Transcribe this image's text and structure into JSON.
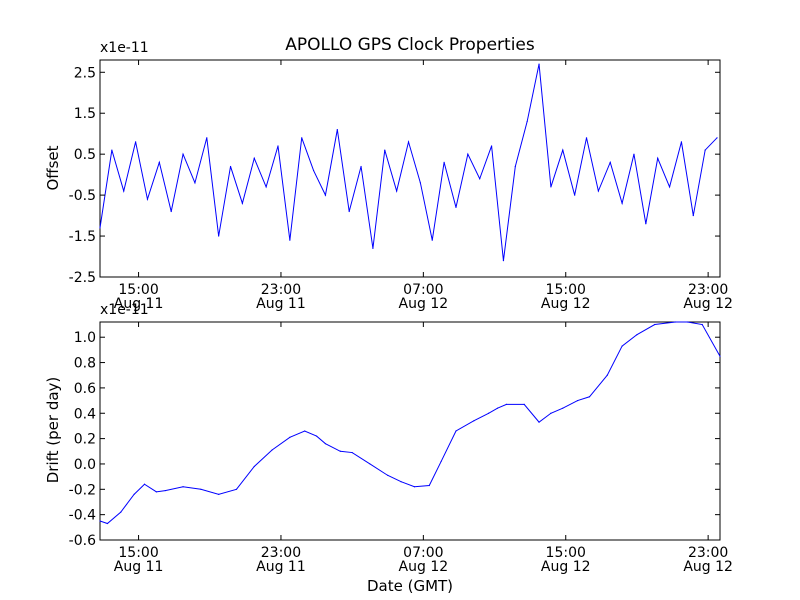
{
  "chart_data": [
    {
      "type": "line",
      "title": "APOLLO GPS Clock Properties",
      "xlabel": "",
      "ylabel": "Offset",
      "y_multiplier": "x1e-11",
      "ylim": [
        -2.5,
        2.8
      ],
      "y_ticks": [
        {
          "value": -2.5,
          "label": "-2.5"
        },
        {
          "value": -1.5,
          "label": "-1.5"
        },
        {
          "value": -0.5,
          "label": "-0.5"
        },
        {
          "value": 0.5,
          "label": "0.5"
        },
        {
          "value": 1.5,
          "label": "1.5"
        },
        {
          "value": 2.5,
          "label": "2.5"
        }
      ],
      "xlim": [
        "Aug 11 12:50",
        "Aug 12 23:40"
      ],
      "x_ticks": [
        {
          "time": "Aug 11 15:00",
          "line1": "15:00",
          "line2": "Aug 11"
        },
        {
          "time": "Aug 11 23:00",
          "line1": "23:00",
          "line2": "Aug 11"
        },
        {
          "time": "Aug 12 07:00",
          "line1": "07:00",
          "line2": "Aug 12"
        },
        {
          "time": "Aug 12 15:00",
          "line1": "15:00",
          "line2": "Aug 12"
        },
        {
          "time": "Aug 12 23:00",
          "line1": "23:00",
          "line2": "Aug 12"
        }
      ],
      "grid": false,
      "color": "#0000ff",
      "series": [
        {
          "x": [
            "Aug 11 12:50",
            "Aug 11 13:30",
            "Aug 11 14:10",
            "Aug 11 14:50",
            "Aug 11 15:30",
            "Aug 11 16:10",
            "Aug 11 16:50",
            "Aug 11 17:30",
            "Aug 11 18:10",
            "Aug 11 18:50",
            "Aug 11 19:30",
            "Aug 11 20:10",
            "Aug 11 20:50",
            "Aug 11 21:30",
            "Aug 11 22:10",
            "Aug 11 22:50",
            "Aug 11 23:30",
            "Aug 12 00:10",
            "Aug 12 00:50",
            "Aug 12 01:30",
            "Aug 12 02:10",
            "Aug 12 02:50",
            "Aug 12 03:30",
            "Aug 12 04:10",
            "Aug 12 04:50",
            "Aug 12 05:30",
            "Aug 12 06:10",
            "Aug 12 06:50",
            "Aug 12 07:30",
            "Aug 12 08:10",
            "Aug 12 08:50",
            "Aug 12 09:30",
            "Aug 12 10:10",
            "Aug 12 10:50",
            "Aug 12 11:30",
            "Aug 12 12:10",
            "Aug 12 12:50",
            "Aug 12 13:30",
            "Aug 12 14:10",
            "Aug 12 14:50",
            "Aug 12 15:30",
            "Aug 12 16:10",
            "Aug 12 16:50",
            "Aug 12 17:30",
            "Aug 12 18:10",
            "Aug 12 18:50",
            "Aug 12 19:30",
            "Aug 12 20:10",
            "Aug 12 20:50",
            "Aug 12 21:30",
            "Aug 12 22:10",
            "Aug 12 22:50",
            "Aug 12 23:30"
          ],
          "y": [
            -1.3,
            0.6,
            -0.4,
            0.8,
            -0.6,
            0.3,
            -0.9,
            0.5,
            -0.2,
            0.9,
            -1.5,
            0.2,
            -0.7,
            0.4,
            -0.3,
            0.7,
            -1.6,
            0.9,
            0.1,
            -0.5,
            1.1,
            -0.9,
            0.2,
            -1.8,
            0.6,
            -0.4,
            0.8,
            -0.2,
            -1.6,
            0.3,
            -0.8,
            0.5,
            -0.1,
            0.7,
            -2.1,
            0.2,
            1.3,
            2.7,
            -0.3,
            0.6,
            -0.5,
            0.9,
            -0.4,
            0.3,
            -0.7,
            0.5,
            -1.2,
            0.4,
            -0.3,
            0.8,
            -1.0,
            0.6,
            0.9
          ]
        }
      ]
    },
    {
      "type": "line",
      "title": "",
      "xlabel": "Date (GMT)",
      "ylabel": "Drift (per day)",
      "y_multiplier": "x1e-11",
      "ylim": [
        -0.6,
        1.12
      ],
      "y_ticks": [
        {
          "value": -0.6,
          "label": "-0.6"
        },
        {
          "value": -0.4,
          "label": "-0.4"
        },
        {
          "value": -0.2,
          "label": "-0.2"
        },
        {
          "value": 0.0,
          "label": "0.0"
        },
        {
          "value": 0.2,
          "label": "0.2"
        },
        {
          "value": 0.4,
          "label": "0.4"
        },
        {
          "value": 0.6,
          "label": "0.6"
        },
        {
          "value": 0.8,
          "label": "0.8"
        },
        {
          "value": 1.0,
          "label": "1.0"
        }
      ],
      "xlim": [
        "Aug 11 12:50",
        "Aug 12 23:40"
      ],
      "x_ticks": [
        {
          "time": "Aug 11 15:00",
          "line1": "15:00",
          "line2": "Aug 11"
        },
        {
          "time": "Aug 11 23:00",
          "line1": "23:00",
          "line2": "Aug 11"
        },
        {
          "time": "Aug 12 07:00",
          "line1": "07:00",
          "line2": "Aug 12"
        },
        {
          "time": "Aug 12 15:00",
          "line1": "15:00",
          "line2": "Aug 12"
        },
        {
          "time": "Aug 12 23:00",
          "line1": "23:00",
          "line2": "Aug 12"
        }
      ],
      "grid": false,
      "color": "#0000ff",
      "series": [
        {
          "x": [
            "Aug 11 12:50",
            "Aug 11 13:15",
            "Aug 11 14:00",
            "Aug 11 14:45",
            "Aug 11 15:20",
            "Aug 11 16:00",
            "Aug 11 16:30",
            "Aug 11 17:30",
            "Aug 11 18:30",
            "Aug 11 19:30",
            "Aug 11 20:30",
            "Aug 11 21:30",
            "Aug 11 22:30",
            "Aug 11 23:30",
            "Aug 12 00:20",
            "Aug 12 01:00",
            "Aug 12 01:30",
            "Aug 12 02:20",
            "Aug 12 03:00",
            "Aug 12 04:00",
            "Aug 12 05:00",
            "Aug 12 05:45",
            "Aug 12 06:30",
            "Aug 12 07:20",
            "Aug 12 08:00",
            "Aug 12 08:50",
            "Aug 12 09:50",
            "Aug 12 10:40",
            "Aug 12 11:10",
            "Aug 12 11:40",
            "Aug 12 12:40",
            "Aug 12 13:30",
            "Aug 12 14:10",
            "Aug 12 14:50",
            "Aug 12 15:40",
            "Aug 12 16:20",
            "Aug 12 17:20",
            "Aug 12 18:10",
            "Aug 12 19:00",
            "Aug 12 20:00",
            "Aug 12 21:10",
            "Aug 12 21:50",
            "Aug 12 22:40",
            "Aug 12 23:40"
          ],
          "y": [
            -0.45,
            -0.47,
            -0.38,
            -0.24,
            -0.16,
            -0.22,
            -0.21,
            -0.18,
            -0.2,
            -0.24,
            -0.2,
            -0.02,
            0.11,
            0.21,
            0.26,
            0.22,
            0.16,
            0.1,
            0.09,
            0.0,
            -0.09,
            -0.14,
            -0.18,
            -0.17,
            0.02,
            0.26,
            0.34,
            0.4,
            0.44,
            0.47,
            0.47,
            0.33,
            0.4,
            0.44,
            0.5,
            0.53,
            0.7,
            0.93,
            1.02,
            1.1,
            1.12,
            1.12,
            1.1,
            0.85
          ]
        }
      ]
    }
  ]
}
